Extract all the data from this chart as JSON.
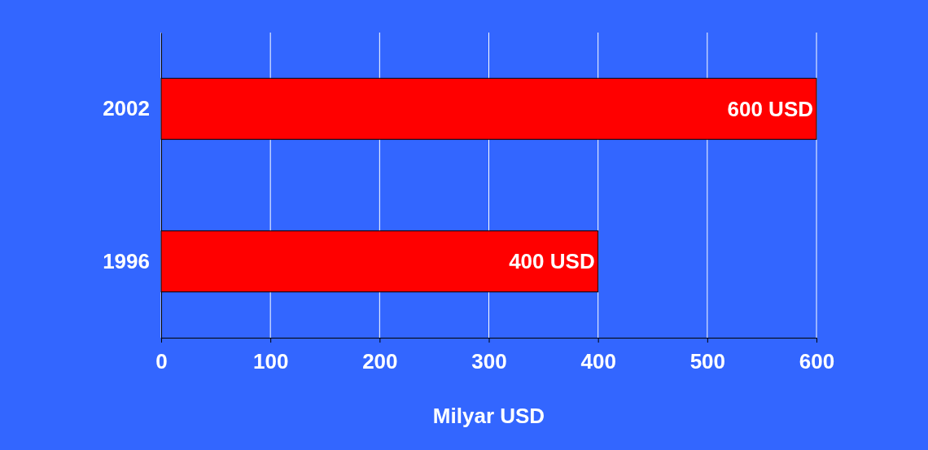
{
  "chart_data": {
    "type": "bar",
    "orientation": "horizontal",
    "xlabel": "Milyar USD",
    "categories": [
      "2002",
      "1996"
    ],
    "values": [
      600,
      400
    ],
    "value_labels": [
      "600 USD",
      "400 USD"
    ],
    "color": "#ff0000",
    "xlim": [
      0,
      600
    ],
    "xticks": [
      0,
      100,
      200,
      300,
      400,
      500,
      600
    ],
    "grid": "x"
  }
}
